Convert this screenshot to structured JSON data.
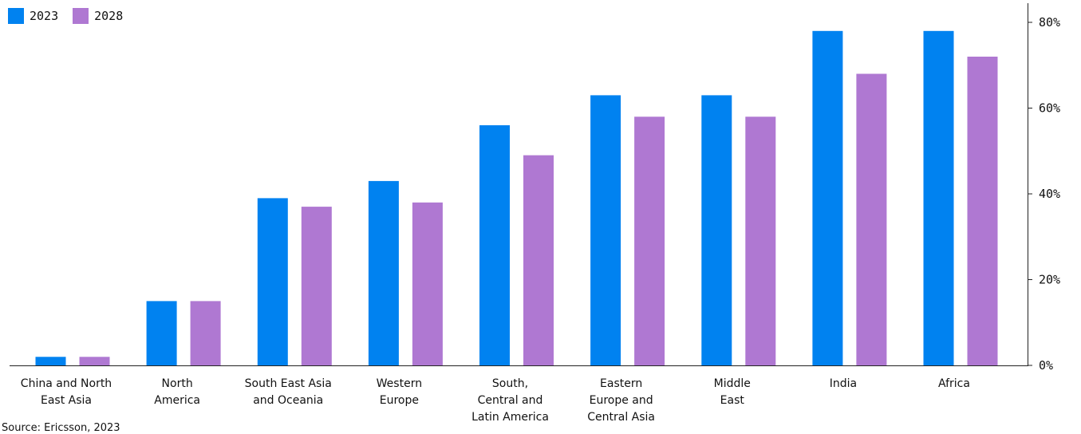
{
  "chart_data": {
    "type": "bar",
    "title": "",
    "xlabel": "",
    "ylabel": "",
    "categories": [
      [
        "China and North",
        "East Asia"
      ],
      [
        "North",
        "America"
      ],
      [
        "South East Asia",
        "and Oceania"
      ],
      [
        "Western",
        "Europe"
      ],
      [
        "South,",
        "Central and",
        "Latin America"
      ],
      [
        "Eastern",
        "Europe and",
        "Central Asia"
      ],
      [
        "Middle",
        "East"
      ],
      [
        "India"
      ],
      [
        "Africa"
      ]
    ],
    "series": [
      {
        "name": "2023",
        "color": "#0082f0",
        "values": [
          2,
          15,
          39,
          43,
          56,
          63,
          63,
          78,
          78
        ]
      },
      {
        "name": "2028",
        "color": "#af78d2",
        "values": [
          2,
          15,
          37,
          38,
          49,
          58,
          58,
          68,
          72
        ]
      }
    ],
    "ylim": [
      0,
      80
    ],
    "yticks": [
      "0%",
      "20%",
      "40%",
      "60%",
      "80%"
    ],
    "ytick_values": [
      0,
      20,
      40,
      60,
      80
    ],
    "y_axis_position": "right",
    "legend_position": "top-left",
    "grid": false
  },
  "source": "Source: Ericsson, 2023"
}
